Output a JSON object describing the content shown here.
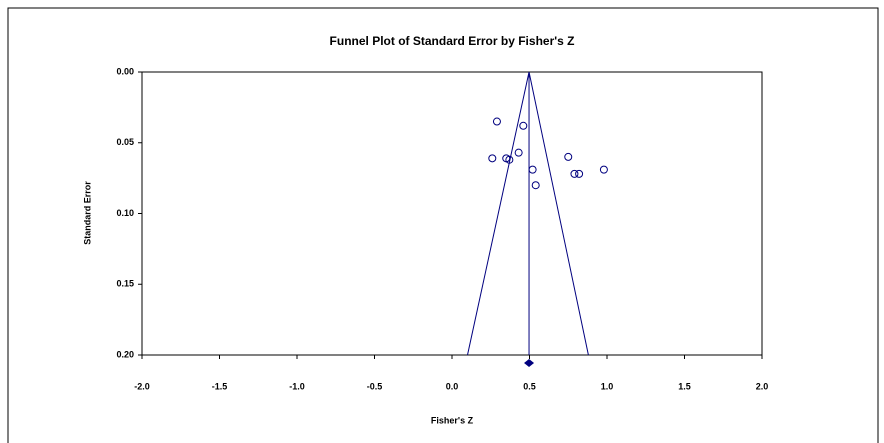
{
  "chart_data": {
    "type": "funnel-scatter",
    "title": "Funnel Plot of Standard Error by Fisher's Z",
    "x_label": "Fisher's Z",
    "y_label": "Standard Error",
    "xlim": [
      -2.0,
      2.0
    ],
    "ylim": [
      0.0,
      0.2
    ],
    "y_reversed": true,
    "xticks": [
      {
        "value": -2.0,
        "label": "-2.0"
      },
      {
        "value": -1.5,
        "label": "-1.5"
      },
      {
        "value": -1.0,
        "label": "-1.0"
      },
      {
        "value": -0.5,
        "label": "-0.5"
      },
      {
        "value": 0.0,
        "label": "0.0"
      },
      {
        "value": 0.5,
        "label": "0.5"
      },
      {
        "value": 1.0,
        "label": "1.0"
      },
      {
        "value": 1.5,
        "label": "1.5"
      },
      {
        "value": 2.0,
        "label": "2.0"
      }
    ],
    "yticks": [
      {
        "value": 0.0,
        "label": "0.00"
      },
      {
        "value": 0.05,
        "label": "0.05"
      },
      {
        "value": 0.1,
        "label": "0.10"
      },
      {
        "value": 0.15,
        "label": "0.15"
      },
      {
        "value": 0.2,
        "label": "0.20"
      }
    ],
    "color": "#00007f",
    "x": [
      0.29,
      0.46,
      0.43,
      0.26,
      0.35,
      0.37,
      0.75,
      0.52,
      0.98,
      0.79,
      0.82,
      0.54
    ],
    "values": [
      0.035,
      0.038,
      0.057,
      0.061,
      0.061,
      0.062,
      0.06,
      0.069,
      0.069,
      0.072,
      0.072,
      0.08
    ],
    "funnel": {
      "center": 0.497,
      "lower_at_max": 0.1,
      "upper_at_max": 0.88
    },
    "summary": 0.497
  }
}
